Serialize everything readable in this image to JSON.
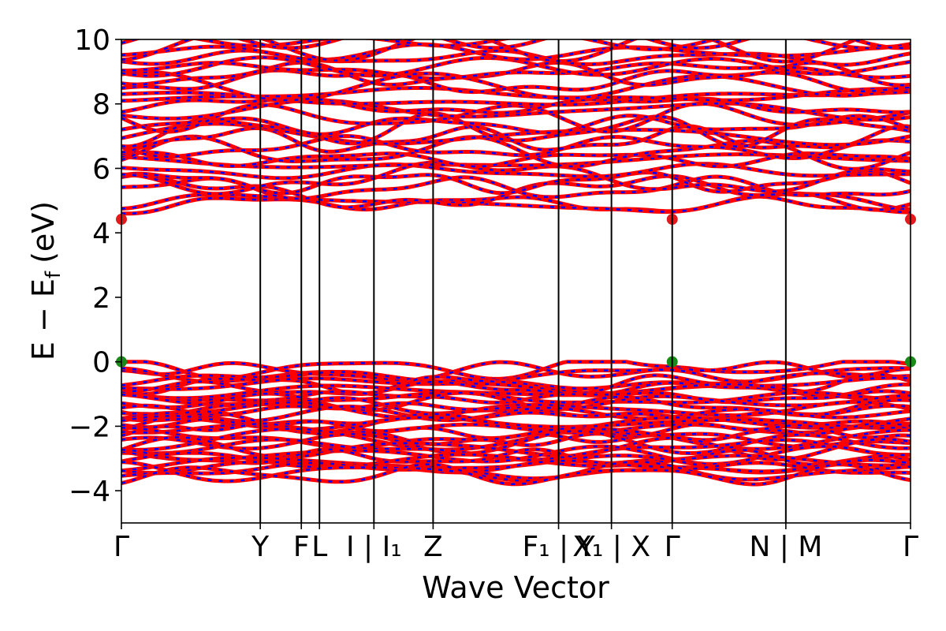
{
  "chart_data": {
    "type": "line",
    "title": "",
    "xlabel": "Wave Vector",
    "ylabel_main": "E − E",
    "ylabel_sub": "f",
    "ylabel_unit": "(eV)",
    "ylim": [
      -5,
      10
    ],
    "yticks": [
      -4,
      -2,
      0,
      2,
      4,
      6,
      8,
      10
    ],
    "ytick_labels": [
      "−4",
      "−2",
      "0",
      "2",
      "4",
      "6",
      "8",
      "10"
    ],
    "kpath": [
      {
        "pos": 0.0,
        "label": "Γ"
      },
      {
        "pos": 0.176,
        "label": "Y"
      },
      {
        "pos": 0.228,
        "label": "F"
      },
      {
        "pos": 0.251,
        "label": "L"
      },
      {
        "pos": 0.32,
        "label": "I | I₁"
      },
      {
        "pos": 0.395,
        "label": "Z"
      },
      {
        "pos": 0.554,
        "label": "F₁ | Y"
      },
      {
        "pos": 0.621,
        "label": "X₁ | X"
      },
      {
        "pos": 0.698,
        "label": "Γ"
      },
      {
        "pos": 0.842,
        "label": "N | M"
      },
      {
        "pos": 1.0,
        "label": "Γ"
      }
    ],
    "series": [
      {
        "color": "#ff0000",
        "style": "solid"
      },
      {
        "color": "#0000ff",
        "style": "dashed"
      }
    ],
    "cbm": {
      "energy": 4.42,
      "positions": [
        0.0,
        0.698,
        1.0
      ],
      "color": "#e31a1c"
    },
    "vbm": {
      "energy": 0.0,
      "positions": [
        0.0,
        0.698,
        1.0
      ],
      "color": "#1a8a1a"
    },
    "valence_band_range": [
      -3.9,
      0.0
    ],
    "conduction_band_range": [
      4.42,
      10.0
    ]
  }
}
